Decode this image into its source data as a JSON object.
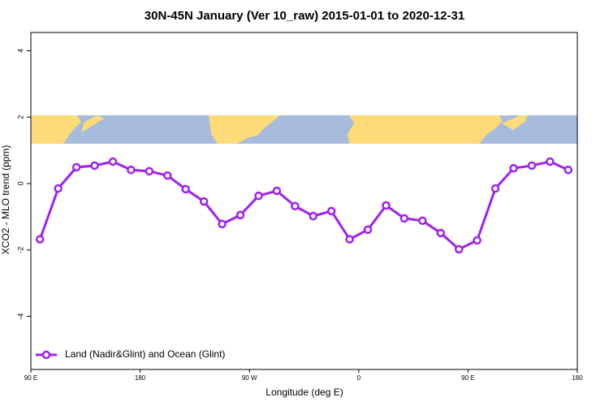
{
  "chart_data": {
    "type": "line",
    "title": "30N-45N January (Ver 10_raw)   2015-01-01 to 2020-12-31",
    "xlabel": "Longitude (deg E)",
    "ylabel": "XCO2 - MLO trend (ppm)",
    "x": [
      97.5,
      112.5,
      127.5,
      142.5,
      157.5,
      172.5,
      187.5,
      202.5,
      217.5,
      232.5,
      247.5,
      262.5,
      277.5,
      292.5,
      307.5,
      322.5,
      337.5,
      352.5,
      367.5,
      382.5,
      397.5,
      412.5,
      427.5,
      442.5,
      457.5,
      472.5,
      487.5,
      502.5,
      517.5,
      532.5
    ],
    "series": [
      {
        "name": "Land (Nadir&Glint) and Ocean (Glint)",
        "color": "#a020f0",
        "values": [
          -1.68,
          -0.15,
          0.49,
          0.54,
          0.66,
          0.41,
          0.37,
          0.24,
          -0.17,
          -0.54,
          -1.22,
          -0.95,
          -0.37,
          -0.22,
          -0.68,
          -0.98,
          -0.83,
          -1.68,
          -1.39,
          -0.66,
          -1.05,
          -1.12,
          -1.49,
          -1.98,
          -1.71,
          -0.15,
          0.46,
          0.54,
          0.66,
          0.41
        ]
      }
    ],
    "xlim": [
      90,
      540
    ],
    "xticks": [
      {
        "value": 90,
        "label": "90 E"
      },
      {
        "value": 180,
        "label": "180"
      },
      {
        "value": 270,
        "label": "90 W"
      },
      {
        "value": 360,
        "label": "0"
      },
      {
        "value": 450,
        "label": "90 E"
      },
      {
        "value": 540,
        "label": "180"
      }
    ],
    "ylim": [
      -5.6,
      4.55
    ],
    "yticks": [
      -4,
      -2,
      0,
      2,
      4
    ],
    "legend": "bottomleft"
  }
}
